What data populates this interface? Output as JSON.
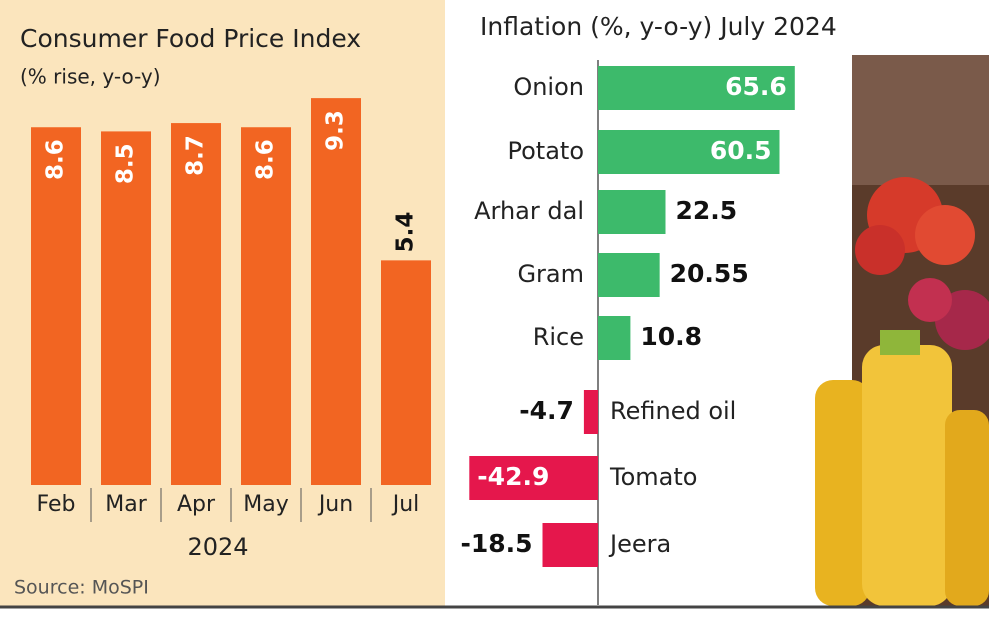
{
  "chart_data": [
    {
      "type": "bar",
      "title": "Consumer Food Price Index",
      "subtitle": "(% rise, y-o-y)",
      "categories": [
        "Feb",
        "Mar",
        "Apr",
        "May",
        "Jun",
        "Jul"
      ],
      "x_label": "2024",
      "values": [
        8.6,
        8.5,
        8.7,
        8.6,
        9.3,
        5.4
      ],
      "color": "#f26522",
      "source": "Source: MoSPI"
    },
    {
      "type": "hbar",
      "title": "Inflation (%, y-o-y) July 2024",
      "categories": [
        "Onion",
        "Potato",
        "Arhar dal",
        "Gram",
        "Rice",
        "Refined oil",
        "Tomato",
        "Jeera"
      ],
      "values": [
        65.6,
        60.5,
        22.5,
        20.55,
        10.8,
        -4.7,
        -42.9,
        -18.5
      ],
      "positive_color": "#3dba6b",
      "negative_color": "#e5174c"
    }
  ]
}
